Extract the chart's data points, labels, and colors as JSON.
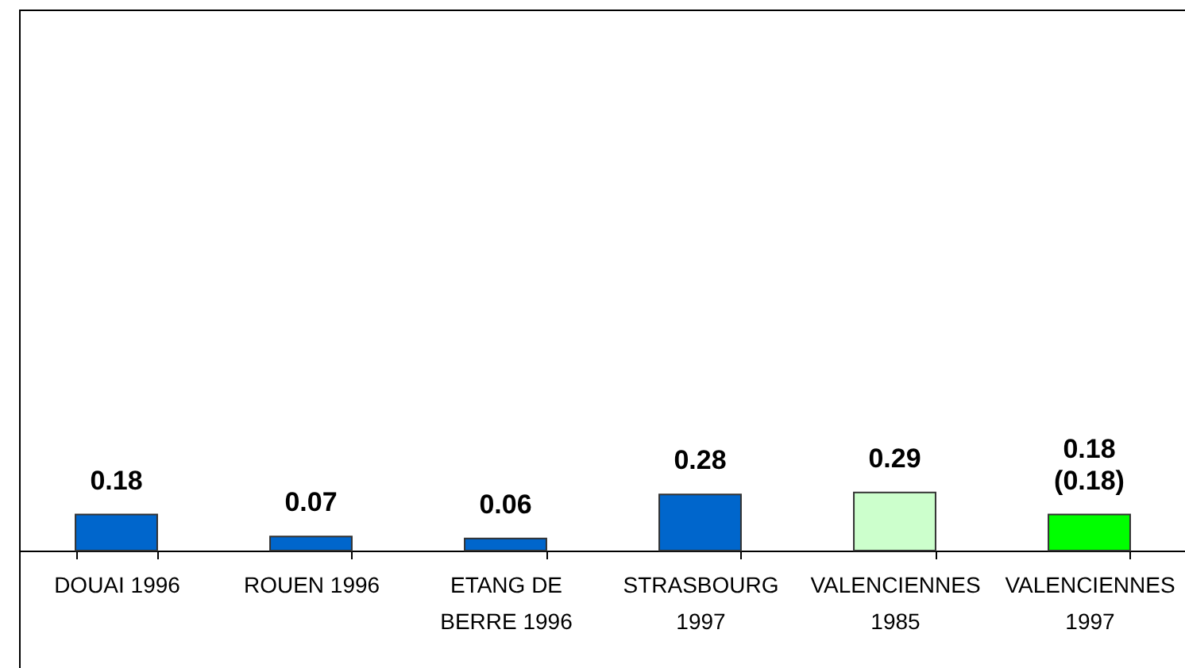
{
  "chart_data": {
    "type": "bar",
    "categories": [
      "DOUAI 1996",
      "ROUEN 1996",
      "ETANG DE BERRE 1996",
      "STRASBOURG 1997",
      "VALENCIENNES 1985",
      "VALENCIENNES 1997"
    ],
    "values": [
      0.18,
      0.07,
      0.06,
      0.28,
      0.29,
      0.18
    ],
    "colors": [
      "#0066cc",
      "#0066cc",
      "#0066cc",
      "#0066cc",
      "#ccffcc",
      "#00ff00"
    ],
    "value_labels": [
      "0.18",
      "0.07",
      "0.06",
      "0.28",
      "0.29",
      "0.18 (0.18)"
    ],
    "ylim": [
      0,
      2.7
    ],
    "tick_labels": "x"
  }
}
